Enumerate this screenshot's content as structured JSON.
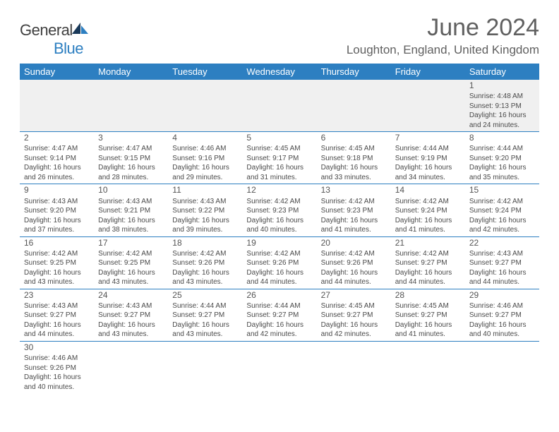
{
  "brand": {
    "text1": "General",
    "text2": "Blue"
  },
  "title": "June 2024",
  "location": "Loughton, England, United Kingdom",
  "colors": {
    "header_bg": "#2d7fc1",
    "border": "#2d7fc1",
    "text": "#4a4a4a"
  },
  "weekdays": [
    "Sunday",
    "Monday",
    "Tuesday",
    "Wednesday",
    "Thursday",
    "Friday",
    "Saturday"
  ],
  "weeks": [
    [
      null,
      null,
      null,
      null,
      null,
      null,
      {
        "n": "1",
        "sr": "Sunrise: 4:48 AM",
        "ss": "Sunset: 9:13 PM",
        "d1": "Daylight: 16 hours",
        "d2": "and 24 minutes."
      }
    ],
    [
      {
        "n": "2",
        "sr": "Sunrise: 4:47 AM",
        "ss": "Sunset: 9:14 PM",
        "d1": "Daylight: 16 hours",
        "d2": "and 26 minutes."
      },
      {
        "n": "3",
        "sr": "Sunrise: 4:47 AM",
        "ss": "Sunset: 9:15 PM",
        "d1": "Daylight: 16 hours",
        "d2": "and 28 minutes."
      },
      {
        "n": "4",
        "sr": "Sunrise: 4:46 AM",
        "ss": "Sunset: 9:16 PM",
        "d1": "Daylight: 16 hours",
        "d2": "and 29 minutes."
      },
      {
        "n": "5",
        "sr": "Sunrise: 4:45 AM",
        "ss": "Sunset: 9:17 PM",
        "d1": "Daylight: 16 hours",
        "d2": "and 31 minutes."
      },
      {
        "n": "6",
        "sr": "Sunrise: 4:45 AM",
        "ss": "Sunset: 9:18 PM",
        "d1": "Daylight: 16 hours",
        "d2": "and 33 minutes."
      },
      {
        "n": "7",
        "sr": "Sunrise: 4:44 AM",
        "ss": "Sunset: 9:19 PM",
        "d1": "Daylight: 16 hours",
        "d2": "and 34 minutes."
      },
      {
        "n": "8",
        "sr": "Sunrise: 4:44 AM",
        "ss": "Sunset: 9:20 PM",
        "d1": "Daylight: 16 hours",
        "d2": "and 35 minutes."
      }
    ],
    [
      {
        "n": "9",
        "sr": "Sunrise: 4:43 AM",
        "ss": "Sunset: 9:20 PM",
        "d1": "Daylight: 16 hours",
        "d2": "and 37 minutes."
      },
      {
        "n": "10",
        "sr": "Sunrise: 4:43 AM",
        "ss": "Sunset: 9:21 PM",
        "d1": "Daylight: 16 hours",
        "d2": "and 38 minutes."
      },
      {
        "n": "11",
        "sr": "Sunrise: 4:43 AM",
        "ss": "Sunset: 9:22 PM",
        "d1": "Daylight: 16 hours",
        "d2": "and 39 minutes."
      },
      {
        "n": "12",
        "sr": "Sunrise: 4:42 AM",
        "ss": "Sunset: 9:23 PM",
        "d1": "Daylight: 16 hours",
        "d2": "and 40 minutes."
      },
      {
        "n": "13",
        "sr": "Sunrise: 4:42 AM",
        "ss": "Sunset: 9:23 PM",
        "d1": "Daylight: 16 hours",
        "d2": "and 41 minutes."
      },
      {
        "n": "14",
        "sr": "Sunrise: 4:42 AM",
        "ss": "Sunset: 9:24 PM",
        "d1": "Daylight: 16 hours",
        "d2": "and 41 minutes."
      },
      {
        "n": "15",
        "sr": "Sunrise: 4:42 AM",
        "ss": "Sunset: 9:24 PM",
        "d1": "Daylight: 16 hours",
        "d2": "and 42 minutes."
      }
    ],
    [
      {
        "n": "16",
        "sr": "Sunrise: 4:42 AM",
        "ss": "Sunset: 9:25 PM",
        "d1": "Daylight: 16 hours",
        "d2": "and 43 minutes."
      },
      {
        "n": "17",
        "sr": "Sunrise: 4:42 AM",
        "ss": "Sunset: 9:25 PM",
        "d1": "Daylight: 16 hours",
        "d2": "and 43 minutes."
      },
      {
        "n": "18",
        "sr": "Sunrise: 4:42 AM",
        "ss": "Sunset: 9:26 PM",
        "d1": "Daylight: 16 hours",
        "d2": "and 43 minutes."
      },
      {
        "n": "19",
        "sr": "Sunrise: 4:42 AM",
        "ss": "Sunset: 9:26 PM",
        "d1": "Daylight: 16 hours",
        "d2": "and 44 minutes."
      },
      {
        "n": "20",
        "sr": "Sunrise: 4:42 AM",
        "ss": "Sunset: 9:26 PM",
        "d1": "Daylight: 16 hours",
        "d2": "and 44 minutes."
      },
      {
        "n": "21",
        "sr": "Sunrise: 4:42 AM",
        "ss": "Sunset: 9:27 PM",
        "d1": "Daylight: 16 hours",
        "d2": "and 44 minutes."
      },
      {
        "n": "22",
        "sr": "Sunrise: 4:43 AM",
        "ss": "Sunset: 9:27 PM",
        "d1": "Daylight: 16 hours",
        "d2": "and 44 minutes."
      }
    ],
    [
      {
        "n": "23",
        "sr": "Sunrise: 4:43 AM",
        "ss": "Sunset: 9:27 PM",
        "d1": "Daylight: 16 hours",
        "d2": "and 44 minutes."
      },
      {
        "n": "24",
        "sr": "Sunrise: 4:43 AM",
        "ss": "Sunset: 9:27 PM",
        "d1": "Daylight: 16 hours",
        "d2": "and 43 minutes."
      },
      {
        "n": "25",
        "sr": "Sunrise: 4:44 AM",
        "ss": "Sunset: 9:27 PM",
        "d1": "Daylight: 16 hours",
        "d2": "and 43 minutes."
      },
      {
        "n": "26",
        "sr": "Sunrise: 4:44 AM",
        "ss": "Sunset: 9:27 PM",
        "d1": "Daylight: 16 hours",
        "d2": "and 42 minutes."
      },
      {
        "n": "27",
        "sr": "Sunrise: 4:45 AM",
        "ss": "Sunset: 9:27 PM",
        "d1": "Daylight: 16 hours",
        "d2": "and 42 minutes."
      },
      {
        "n": "28",
        "sr": "Sunrise: 4:45 AM",
        "ss": "Sunset: 9:27 PM",
        "d1": "Daylight: 16 hours",
        "d2": "and 41 minutes."
      },
      {
        "n": "29",
        "sr": "Sunrise: 4:46 AM",
        "ss": "Sunset: 9:27 PM",
        "d1": "Daylight: 16 hours",
        "d2": "and 40 minutes."
      }
    ],
    [
      {
        "n": "30",
        "sr": "Sunrise: 4:46 AM",
        "ss": "Sunset: 9:26 PM",
        "d1": "Daylight: 16 hours",
        "d2": "and 40 minutes."
      },
      null,
      null,
      null,
      null,
      null,
      null
    ]
  ]
}
